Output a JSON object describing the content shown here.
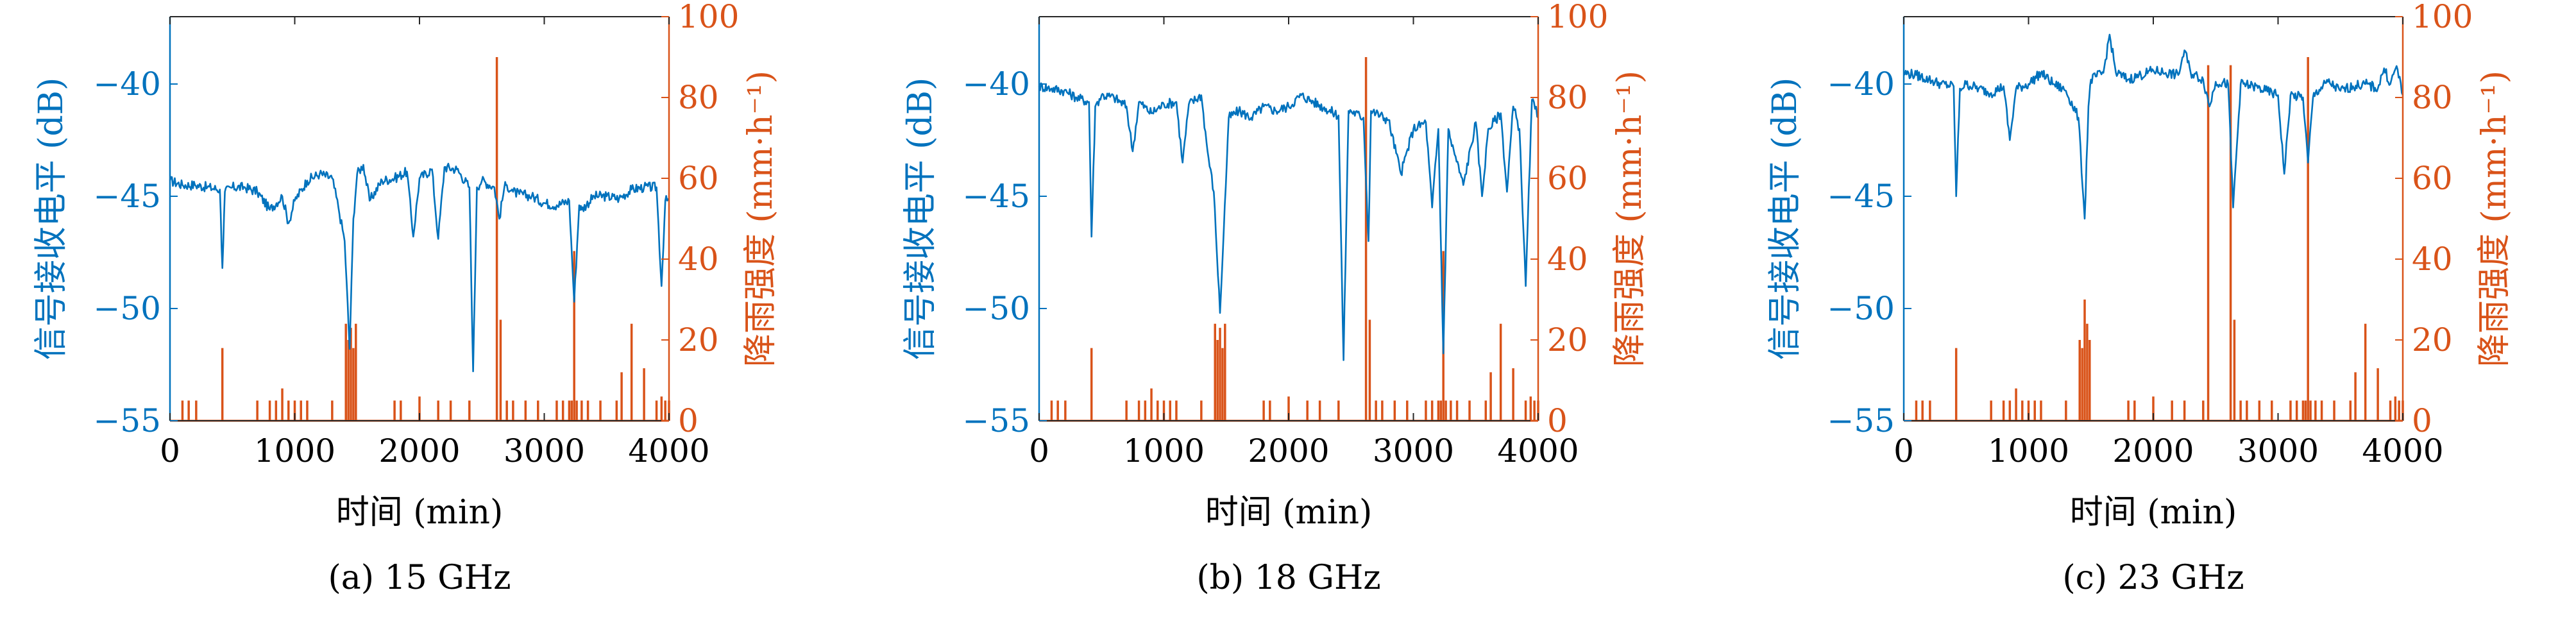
{
  "figure": {
    "colors": {
      "signal": "#0072BD",
      "rain": "#D95319",
      "axis": "#262626"
    },
    "x_axis_label": "时间 (min)",
    "left_axis_label": "信号接收电平 (dB)",
    "right_axis_label": "降雨强度 (mm·h⁻¹)"
  },
  "chart_data": [
    {
      "type": "line",
      "title": "(a) 15 GHz",
      "xlabel": "时间 (min)",
      "ylabel": "信号接收电平 (dB)",
      "y2label": "降雨强度 (mm·h⁻¹)",
      "xlim": [
        0,
        4000
      ],
      "ylim": [
        -55,
        -37
      ],
      "y2lim": [
        0,
        100
      ],
      "xticks": [
        0,
        1000,
        2000,
        3000,
        4000
      ],
      "yticks": [
        -55,
        -50,
        -45,
        -40
      ],
      "y2ticks": [
        0,
        20,
        40,
        60,
        80,
        100
      ],
      "series": [
        {
          "axis": "left",
          "kind": "line",
          "x": [
            0,
            100,
            200,
            300,
            400,
            420,
            440,
            500,
            600,
            700,
            800,
            900,
            950,
            1000,
            1100,
            1200,
            1300,
            1350,
            1400,
            1440,
            1470,
            1500,
            1550,
            1600,
            1700,
            1800,
            1900,
            1950,
            2000,
            2100,
            2150,
            2200,
            2300,
            2400,
            2430,
            2460,
            2500,
            2600,
            2640,
            2680,
            2700,
            2750,
            2800,
            2900,
            3000,
            3100,
            3200,
            3240,
            3280,
            3300,
            3400,
            3500,
            3600,
            3700,
            3800,
            3900,
            3940,
            3970,
            4000
          ],
          "y": [
            -44.3,
            -44.5,
            -44.5,
            -44.6,
            -44.7,
            -48.2,
            -44.8,
            -44.6,
            -44.6,
            -44.8,
            -45.6,
            -45.0,
            -46.2,
            -45.2,
            -44.3,
            -44.0,
            -44.2,
            -45.5,
            -47.0,
            -51.8,
            -46.0,
            -44.0,
            -43.6,
            -45.2,
            -44.3,
            -44.2,
            -43.9,
            -46.8,
            -44.2,
            -43.8,
            -46.9,
            -43.7,
            -43.8,
            -44.6,
            -52.8,
            -44.6,
            -44.3,
            -44.6,
            -46.0,
            -44.6,
            -44.5,
            -44.8,
            -44.9,
            -45.0,
            -45.3,
            -45.4,
            -45.2,
            -49.7,
            -45.4,
            -45.6,
            -45.0,
            -45.0,
            -45.1,
            -44.7,
            -44.6,
            -44.6,
            -49.0,
            -45.2,
            -45.2
          ]
        },
        {
          "axis": "right",
          "kind": "bars",
          "x": [
            100,
            150,
            210,
            420,
            700,
            800,
            850,
            900,
            950,
            1000,
            1050,
            1100,
            1300,
            1410,
            1430,
            1450,
            1470,
            1490,
            1800,
            1850,
            2000,
            2150,
            2250,
            2400,
            2620,
            2650,
            2700,
            2750,
            2850,
            2950,
            3100,
            3150,
            3200,
            3220,
            3240,
            3260,
            3300,
            3350,
            3450,
            3580,
            3620,
            3700,
            3800,
            3900,
            3940,
            3970,
            4000
          ],
          "y": [
            5,
            5,
            5,
            18,
            5,
            5,
            5,
            8,
            5,
            5,
            5,
            5,
            5,
            24,
            20,
            23,
            18,
            24,
            5,
            5,
            6,
            5,
            5,
            5,
            90,
            25,
            5,
            5,
            5,
            5,
            5,
            5,
            5,
            5,
            42,
            5,
            5,
            5,
            5,
            5,
            12,
            24,
            13,
            5,
            6,
            5,
            5
          ]
        }
      ]
    },
    {
      "type": "line",
      "title": "(b) 18 GHz",
      "xlabel": "时间 (min)",
      "ylabel": "信号接收电平 (dB)",
      "y2label": "降雨强度 (mm·h⁻¹)",
      "xlim": [
        0,
        4000
      ],
      "ylim": [
        -55,
        -37
      ],
      "y2lim": [
        0,
        100
      ],
      "xticks": [
        0,
        1000,
        2000,
        3000,
        4000
      ],
      "yticks": [
        -55,
        -50,
        -45,
        -40
      ],
      "y2ticks": [
        0,
        20,
        40,
        60,
        80,
        100
      ],
      "series": [
        {
          "axis": "left",
          "kind": "line",
          "x": [
            0,
            100,
            200,
            300,
            400,
            420,
            450,
            500,
            600,
            700,
            750,
            800,
            900,
            1000,
            1100,
            1150,
            1200,
            1300,
            1350,
            1400,
            1450,
            1480,
            1520,
            1600,
            1700,
            1800,
            1900,
            2000,
            2100,
            2200,
            2300,
            2400,
            2440,
            2480,
            2500,
            2600,
            2640,
            2660,
            2700,
            2800,
            2900,
            3000,
            3100,
            3150,
            3200,
            3240,
            3280,
            3300,
            3400,
            3500,
            3550,
            3600,
            3700,
            3750,
            3800,
            3850,
            3900,
            3950,
            4000
          ],
          "y": [
            -40.1,
            -40.2,
            -40.3,
            -40.6,
            -40.8,
            -46.8,
            -41.0,
            -40.5,
            -40.6,
            -41.0,
            -43.0,
            -40.8,
            -41.3,
            -40.9,
            -40.8,
            -43.5,
            -40.9,
            -40.5,
            -43.0,
            -44.8,
            -50.2,
            -46.5,
            -41.5,
            -41.2,
            -41.5,
            -41.0,
            -41.2,
            -41.0,
            -40.5,
            -40.8,
            -41.1,
            -41.4,
            -52.3,
            -41.2,
            -41.2,
            -41.5,
            -47.0,
            -41.2,
            -41.3,
            -41.6,
            -44.0,
            -42.0,
            -41.7,
            -45.5,
            -42.0,
            -52.0,
            -42.0,
            -42.5,
            -44.5,
            -41.7,
            -45.0,
            -42.0,
            -41.3,
            -44.8,
            -41.0,
            -42.0,
            -49.0,
            -40.7,
            -41.5
          ]
        },
        {
          "axis": "right",
          "kind": "bars",
          "x": [
            100,
            150,
            210,
            420,
            700,
            800,
            850,
            900,
            950,
            1000,
            1050,
            1100,
            1300,
            1410,
            1430,
            1450,
            1470,
            1490,
            1800,
            1850,
            2000,
            2150,
            2250,
            2400,
            2620,
            2650,
            2700,
            2750,
            2850,
            2950,
            3100,
            3150,
            3200,
            3220,
            3240,
            3260,
            3300,
            3350,
            3450,
            3580,
            3620,
            3700,
            3800,
            3900,
            3940,
            3970,
            4000
          ],
          "y": [
            5,
            5,
            5,
            18,
            5,
            5,
            5,
            8,
            5,
            5,
            5,
            5,
            5,
            24,
            20,
            23,
            18,
            24,
            5,
            5,
            6,
            5,
            5,
            5,
            90,
            25,
            5,
            5,
            5,
            5,
            5,
            5,
            5,
            5,
            42,
            5,
            5,
            5,
            5,
            5,
            12,
            24,
            13,
            5,
            6,
            5,
            5
          ]
        }
      ]
    },
    {
      "type": "line",
      "title": "(c) 23 GHz",
      "xlabel": "时间 (min)",
      "ylabel": "信号接收电平 (dB)",
      "y2label": "降雨强度 (mm·h⁻¹)",
      "xlim": [
        0,
        4000
      ],
      "ylim": [
        -55,
        -37
      ],
      "y2lim": [
        0,
        100
      ],
      "xticks": [
        0,
        1000,
        2000,
        3000,
        4000
      ],
      "yticks": [
        -55,
        -50,
        -45,
        -40
      ],
      "y2ticks": [
        0,
        20,
        40,
        60,
        80,
        100
      ],
      "series": [
        {
          "axis": "left",
          "kind": "line",
          "x": [
            0,
            100,
            200,
            300,
            400,
            420,
            450,
            500,
            600,
            700,
            800,
            850,
            900,
            1000,
            1100,
            1200,
            1300,
            1400,
            1450,
            1480,
            1500,
            1600,
            1650,
            1700,
            1800,
            1900,
            2000,
            2100,
            2200,
            2250,
            2300,
            2400,
            2450,
            2500,
            2600,
            2640,
            2700,
            2800,
            2900,
            3000,
            3050,
            3100,
            3200,
            3240,
            3280,
            3300,
            3400,
            3500,
            3600,
            3700,
            3800,
            3850,
            3900,
            3950,
            4000
          ],
          "y": [
            -39.5,
            -39.6,
            -39.8,
            -40.0,
            -40.1,
            -45.0,
            -40.2,
            -40.0,
            -40.2,
            -40.4,
            -40.1,
            -42.5,
            -40.2,
            -40.0,
            -39.5,
            -40.0,
            -40.3,
            -41.5,
            -46.0,
            -41.0,
            -39.8,
            -39.5,
            -37.8,
            -39.5,
            -39.8,
            -39.6,
            -39.4,
            -39.5,
            -39.6,
            -38.5,
            -39.5,
            -39.8,
            -41.0,
            -39.9,
            -40.0,
            -45.5,
            -40.0,
            -40.1,
            -40.3,
            -40.5,
            -44.0,
            -40.5,
            -40.6,
            -43.5,
            -40.6,
            -40.4,
            -39.9,
            -40.3,
            -40.1,
            -40.0,
            -40.2,
            -39.3,
            -40.0,
            -39.2,
            -40.5
          ]
        },
        {
          "axis": "right",
          "kind": "bars",
          "x": [
            100,
            150,
            210,
            420,
            700,
            800,
            850,
            900,
            950,
            1000,
            1050,
            1100,
            1300,
            1410,
            1430,
            1450,
            1470,
            1490,
            1800,
            1850,
            2000,
            2150,
            2250,
            2400,
            2440,
            2620,
            2650,
            2700,
            2750,
            2850,
            2950,
            3100,
            3150,
            3200,
            3220,
            3240,
            3260,
            3300,
            3350,
            3450,
            3580,
            3620,
            3700,
            3800,
            3900,
            3940,
            3970,
            4000
          ],
          "y": [
            5,
            5,
            5,
            18,
            5,
            5,
            5,
            8,
            5,
            5,
            5,
            5,
            5,
            20,
            18,
            30,
            24,
            20,
            5,
            5,
            6,
            5,
            5,
            5,
            88,
            88,
            25,
            5,
            5,
            5,
            5,
            5,
            5,
            5,
            5,
            90,
            5,
            5,
            5,
            5,
            5,
            12,
            24,
            13,
            5,
            6,
            5,
            5
          ]
        }
      ]
    }
  ]
}
